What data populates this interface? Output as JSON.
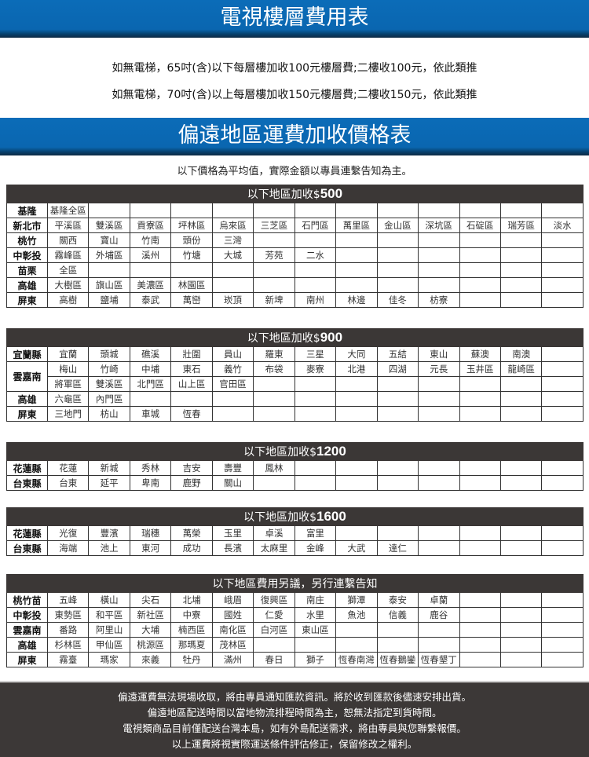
{
  "floor_fee": {
    "title": "電視樓層費用表",
    "notes": [
      "如無電梯，65吋(含)以下每層樓加收100元樓層費;二樓收100元，依此類推",
      "如無電梯，70吋(含)以上每層樓加收150元樓層費;二樓收150元，依此類推"
    ]
  },
  "remote_fee": {
    "title": "偏遠地區運費加收價格表",
    "subtitle": "以下價格為平均值，實際金額以專員連繫告知為主。",
    "tables": [
      {
        "header_prefix": "以下地區加收$",
        "amount": "500",
        "rows": [
          {
            "label": "基隆",
            "span": 1,
            "cells": [
              "基隆全區"
            ]
          },
          {
            "label": "新北市",
            "span": 1,
            "cells": [
              "平溪區",
              "雙溪區",
              "貢寮區",
              "坪林區",
              "烏來區",
              "三芝區",
              "石門區",
              "萬里區",
              "金山區",
              "深坑區",
              "石碇區",
              "瑞芳區",
              "淡水"
            ]
          },
          {
            "label": "桃竹",
            "span": 1,
            "cells": [
              "關西",
              "寶山",
              "竹南",
              "頭份",
              "三灣"
            ]
          },
          {
            "label": "中彰投",
            "span": 1,
            "cells": [
              "霧峰區",
              "外埔區",
              "溪州",
              "竹塘",
              "大城",
              "芳苑",
              "二水"
            ]
          },
          {
            "label": "苗栗",
            "span": 1,
            "cells": [
              "全區"
            ]
          },
          {
            "label": "高雄",
            "span": 1,
            "cells": [
              "大樹區",
              "旗山區",
              "美濃區",
              "林園區"
            ]
          },
          {
            "label": "屏東",
            "span": 1,
            "cells": [
              "高樹",
              "鹽埔",
              "泰武",
              "萬巒",
              "崁頂",
              "新埤",
              "南州",
              "林邊",
              "佳冬",
              "枋寮"
            ]
          }
        ]
      },
      {
        "header_prefix": "以下地區加收$",
        "amount": "900",
        "rows": [
          {
            "label": "宜蘭縣",
            "span": 1,
            "cells": [
              "宜蘭",
              "頭城",
              "礁溪",
              "壯圍",
              "員山",
              "羅東",
              "三星",
              "大同",
              "五結",
              "東山",
              "蘇澳",
              "南澳"
            ]
          },
          {
            "label": "雲嘉南",
            "span": 2,
            "cells": [
              "梅山",
              "竹崎",
              "中埔",
              "東石",
              "義竹",
              "布袋",
              "麥寮",
              "北港",
              "四湖",
              "元長",
              "玉井區",
              "龍崎區"
            ]
          },
          {
            "label": null,
            "span": 0,
            "cells": [
              "將軍區",
              "雙溪區",
              "北門區",
              "山上區",
              "官田區"
            ]
          },
          {
            "label": "高雄",
            "span": 1,
            "cells": [
              "六龜區",
              "內門區"
            ]
          },
          {
            "label": "屏東",
            "span": 1,
            "cells": [
              "三地門",
              "枋山",
              "車城",
              "恆春"
            ]
          }
        ]
      },
      {
        "header_prefix": "以下地區加收$",
        "amount": "1200",
        "rows": [
          {
            "label": "花蓮縣",
            "span": 1,
            "cells": [
              "花蓮",
              "新城",
              "秀林",
              "吉安",
              "壽豐",
              "鳳林"
            ]
          },
          {
            "label": "台東縣",
            "span": 1,
            "cells": [
              "台東",
              "延平",
              "卑南",
              "鹿野",
              "關山"
            ]
          }
        ]
      },
      {
        "header_prefix": "以下地區加收$",
        "amount": "1600",
        "rows": [
          {
            "label": "花蓮縣",
            "span": 1,
            "cells": [
              "光復",
              "豐濱",
              "瑞穗",
              "萬榮",
              "玉里",
              "卓溪",
              "富里"
            ]
          },
          {
            "label": "台東縣",
            "span": 1,
            "cells": [
              "海端",
              "池上",
              "東河",
              "成功",
              "長濱",
              "太麻里",
              "金峰",
              "大武",
              "達仁"
            ]
          }
        ]
      },
      {
        "header_prefix": "以下地區費用另議，另行連繫告知",
        "amount": "",
        "rows": [
          {
            "label": "桃竹苗",
            "span": 1,
            "cells": [
              "五峰",
              "橫山",
              "尖石",
              "北埔",
              "峨眉",
              "復興區",
              "南庄",
              "獅潭",
              "泰安",
              "卓蘭"
            ]
          },
          {
            "label": "中彰投",
            "span": 1,
            "cells": [
              "東勢區",
              "和平區",
              "新社區",
              "中寮",
              "國姓",
              "仁愛",
              "水里",
              "魚池",
              "信義",
              "鹿谷"
            ]
          },
          {
            "label": "雲嘉南",
            "span": 1,
            "cells": [
              "番路",
              "阿里山",
              "大埔",
              "楠西區",
              "南化區",
              "白河區",
              "東山區"
            ]
          },
          {
            "label": "高雄",
            "span": 1,
            "cells": [
              "杉林區",
              "甲仙區",
              "桃源區",
              "那瑪夏",
              "茂林區"
            ]
          },
          {
            "label": "屏東",
            "span": 1,
            "cells": [
              "霧臺",
              "瑪家",
              "來義",
              "牡丹",
              "滿州",
              "春日",
              "獅子",
              "恆春南灣",
              "恆春鵝鑾",
              "恆春墾丁"
            ]
          }
        ]
      }
    ]
  },
  "footer": {
    "lines": [
      "偏遠運費無法現場收取，將由專員通知匯款資訊。將於收到匯款後儘速安排出貨。",
      "偏遠地區配送時間以當地物流排程時間為主，恕無法指定到貨時間。",
      "電視類商品目前僅配送台灣本島，如有外島配送需求，將由專員與您聯繫報價。",
      "以上運費將視實際運送條件評估修正，保留修改之權利。"
    ]
  },
  "colors": {
    "banner": "#0a66b0",
    "table_header": "#3b3736",
    "footer": "#3c3837"
  }
}
